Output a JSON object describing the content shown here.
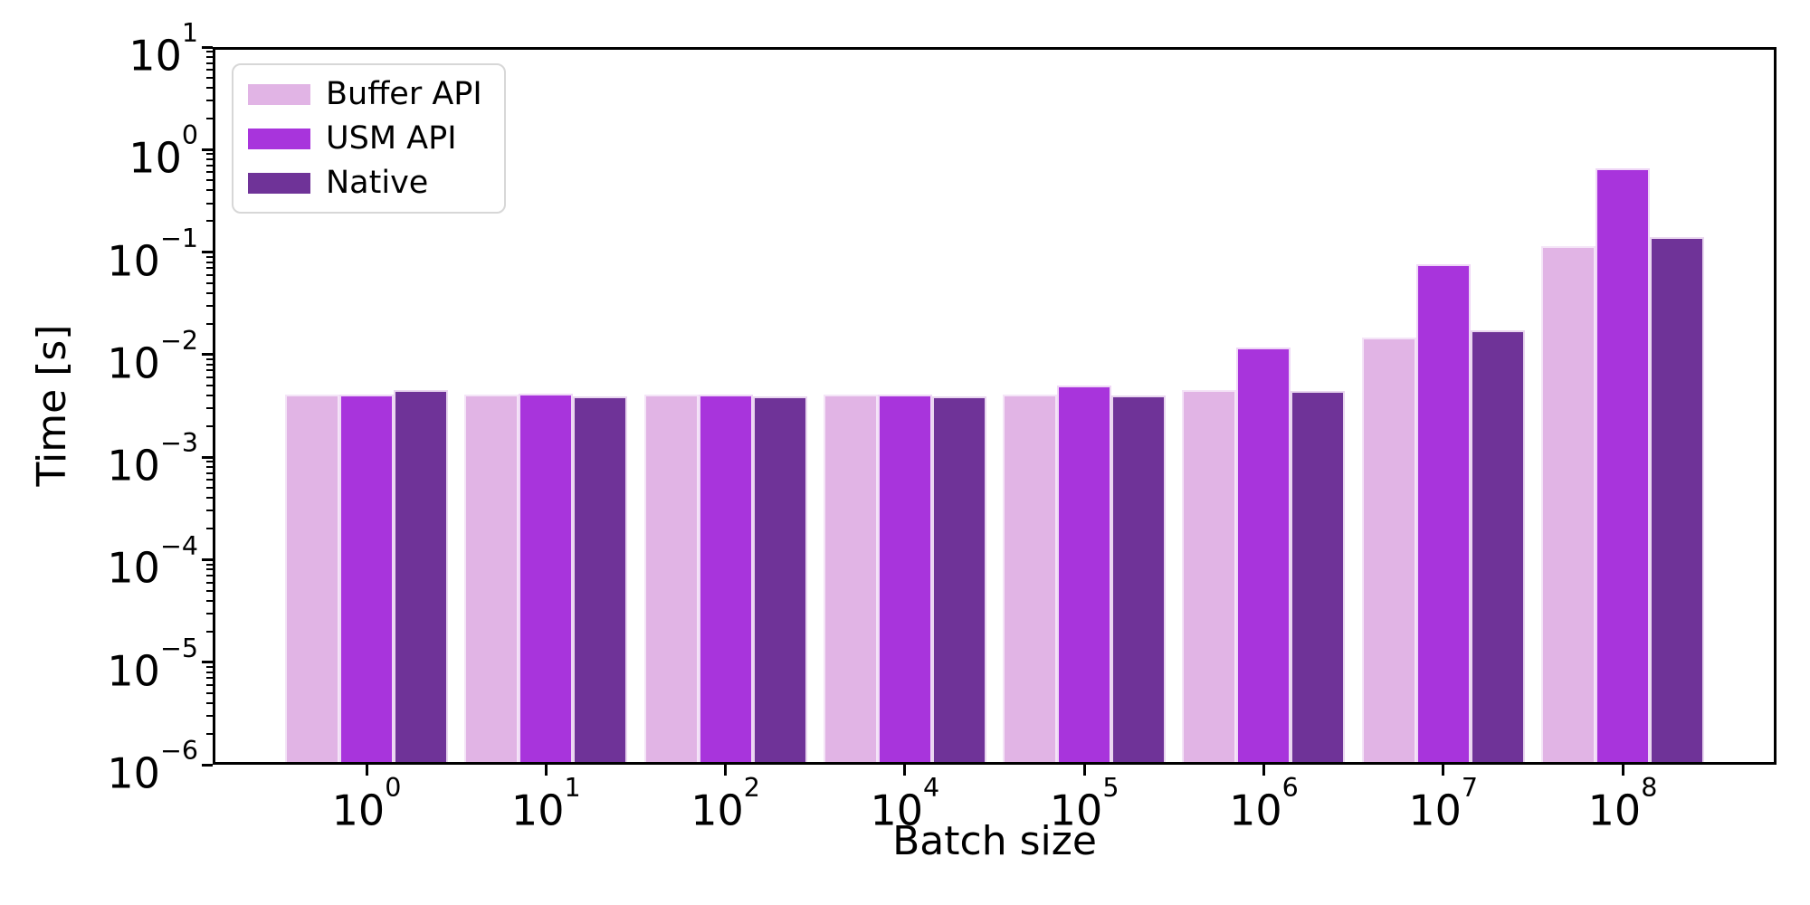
{
  "figure": {
    "background": "#ffffff",
    "text_color": "#000000",
    "spine_color": "#000000"
  },
  "chart_data": {
    "type": "bar",
    "title": "",
    "xlabel": "Batch size",
    "ylabel": "Time [s]",
    "yscale": "log",
    "ylim": [
      1e-06,
      10
    ],
    "grid": false,
    "ytick_labels": [
      "10^1",
      "10^0",
      "10^-1",
      "10^-2",
      "10^-3",
      "10^-4",
      "10^-5",
      "10^-6"
    ],
    "categories": [
      "10^0",
      "10^1",
      "10^2",
      "10^4",
      "10^5",
      "10^6",
      "10^7",
      "10^8"
    ],
    "legend": {
      "position": "upper left",
      "entries": [
        "Buffer API",
        "USM API",
        "Native"
      ]
    },
    "series": [
      {
        "name": "Buffer API",
        "color": "#e1b4e5",
        "values": [
          0.0041,
          0.0041,
          0.0041,
          0.0041,
          0.0041,
          0.0045,
          0.0148,
          0.114
        ]
      },
      {
        "name": "USM API",
        "color": "#a834dc",
        "values": [
          0.0041,
          0.0042,
          0.0041,
          0.0041,
          0.005,
          0.0118,
          0.0757,
          0.66
        ]
      },
      {
        "name": "Native",
        "color": "#6f3398",
        "values": [
          0.0045,
          0.0039,
          0.0039,
          0.0039,
          0.004,
          0.0044,
          0.0172,
          0.141
        ]
      }
    ]
  }
}
